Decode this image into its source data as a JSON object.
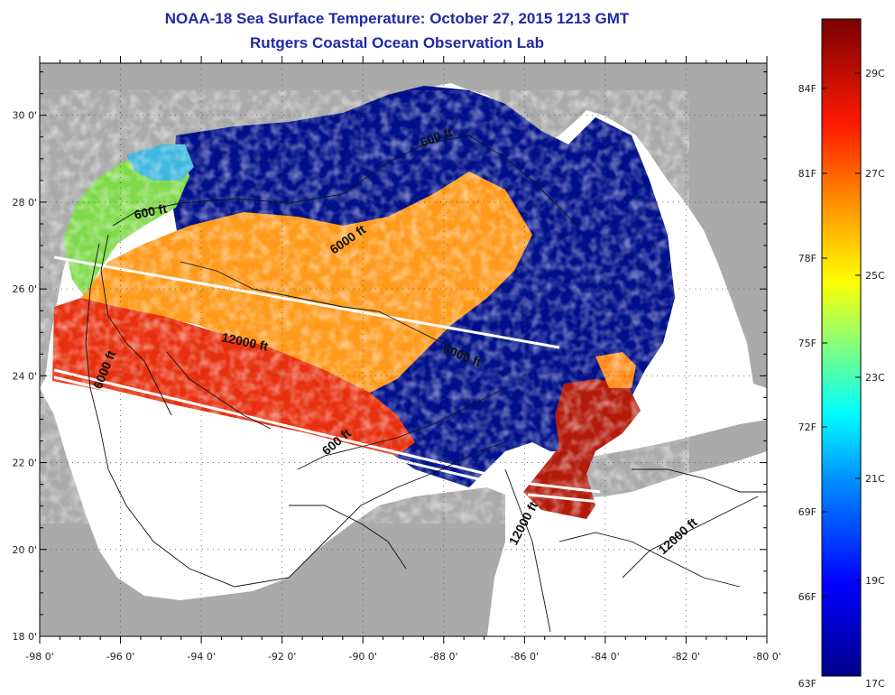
{
  "header": {
    "title": "NOAA-18 Sea Surface Temperature:  October 27, 2015 1213 GMT",
    "subtitle": "Rutgers Coastal Ocean Observation Lab"
  },
  "map": {
    "lon_labels": [
      "-98 0'",
      "-96 0'",
      "-94 0'",
      "-92 0'",
      "-90 0'",
      "-88 0'",
      "-86 0'",
      "-84 0'",
      "-82 0'",
      "-80 0'"
    ],
    "lat_labels": [
      "18 0'",
      "20 0'",
      "22 0'",
      "24 0'",
      "26 0'",
      "28 0'",
      "30 0'"
    ],
    "contour_labels": [
      "600 ft",
      "6000 ft",
      "12000 ft",
      "6000 ft",
      "600 ft",
      "600 ft",
      "6000 ft",
      "12000 ft",
      "12000 ft"
    ],
    "colors": {
      "land": "#aaaaaa",
      "no_data": "#ffffff",
      "cold": "#00008b",
      "warm": "#8b0000"
    }
  },
  "colorbar": {
    "fahrenheit": [
      "84F",
      "81F",
      "78F",
      "75F",
      "72F",
      "69F",
      "66F",
      "63F"
    ],
    "celsius": [
      "29C",
      "27C",
      "25C",
      "23C",
      "21C",
      "19C",
      "17C"
    ]
  }
}
